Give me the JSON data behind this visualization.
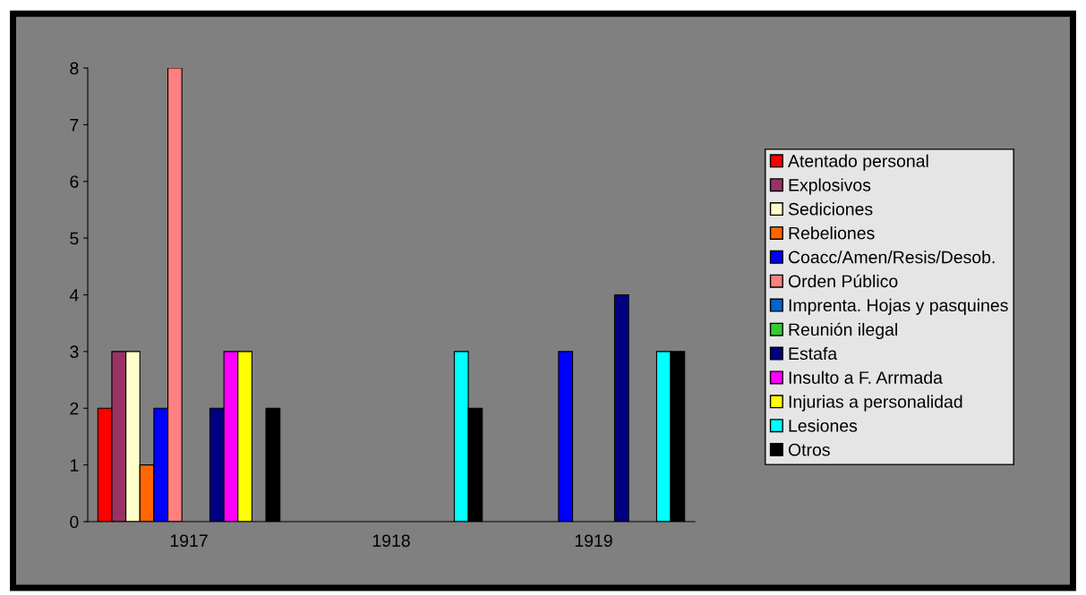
{
  "chart_data": {
    "type": "bar",
    "categories": [
      "1917",
      "1918",
      "1919"
    ],
    "series": [
      {
        "name": "Atentado personal",
        "color": "#ff0000",
        "values": [
          2,
          null,
          null
        ]
      },
      {
        "name": "Explosivos",
        "color": "#993366",
        "values": [
          3,
          null,
          null
        ]
      },
      {
        "name": "Sediciones",
        "color": "#ffffcc",
        "values": [
          3,
          null,
          null
        ]
      },
      {
        "name": "Rebeliones",
        "color": "#ff6600",
        "values": [
          1,
          null,
          null
        ]
      },
      {
        "name": "Coacc/Amen/Resis/Desob.",
        "color": "#0000ff",
        "values": [
          2,
          null,
          3
        ]
      },
      {
        "name": "Orden Público",
        "color": "#ff8080",
        "values": [
          8,
          null,
          null
        ]
      },
      {
        "name": "Imprenta. Hojas y pasquines",
        "color": "#0066cc",
        "values": [
          null,
          null,
          null
        ]
      },
      {
        "name": "Reunión ilegal",
        "color": "#33cc33",
        "values": [
          null,
          null,
          null
        ]
      },
      {
        "name": "Estafa",
        "color": "#000080",
        "values": [
          2,
          null,
          4
        ]
      },
      {
        "name": "Insulto a F. Arrmada",
        "color": "#ff00ff",
        "values": [
          3,
          null,
          null
        ]
      },
      {
        "name": "Injurias a personalidad",
        "color": "#ffff00",
        "values": [
          3,
          null,
          null
        ]
      },
      {
        "name": "Lesiones",
        "color": "#00ffff",
        "values": [
          null,
          3,
          3
        ]
      },
      {
        "name": "Otros",
        "color": "#000000",
        "values": [
          2,
          2,
          3
        ]
      }
    ],
    "ylim": [
      0,
      8
    ],
    "yticks": [
      0,
      1,
      2,
      3,
      4,
      5,
      6,
      7,
      8
    ],
    "grid": false,
    "legend": "right"
  }
}
